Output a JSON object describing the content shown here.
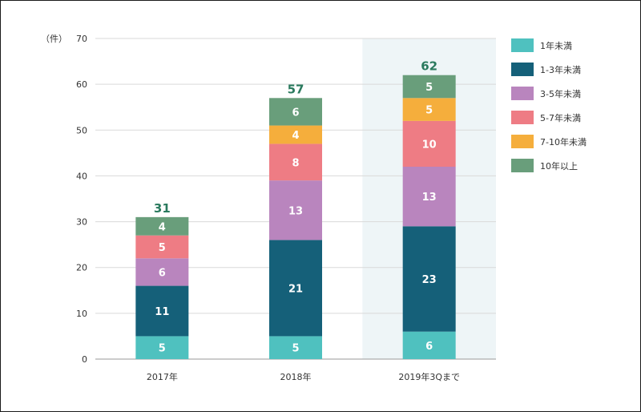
{
  "chart_data": {
    "type": "bar",
    "stacked": true,
    "unit_label": "（件）",
    "categories": [
      "2017年",
      "2018年",
      "2019年3Qまで"
    ],
    "highlighted_category": "2019年3Qまで",
    "highlight_color": "#eef5f7",
    "ylim": [
      0,
      70
    ],
    "yticks": [
      0,
      10,
      20,
      30,
      40,
      50,
      60,
      70
    ],
    "grid": true,
    "legend_position": "right",
    "series": [
      {
        "name": "1年未満",
        "color": "#4fc1bf",
        "values": [
          5,
          5,
          6
        ]
      },
      {
        "name": "1-3年未満",
        "color": "#156079",
        "values": [
          11,
          21,
          23
        ]
      },
      {
        "name": "3-5年未満",
        "color": "#b985be",
        "values": [
          6,
          13,
          13
        ]
      },
      {
        "name": "5-7年未満",
        "color": "#ee7c84",
        "values": [
          5,
          8,
          10
        ]
      },
      {
        "name": "7-10年未満",
        "color": "#f5ae3c",
        "values": [
          0,
          4,
          5
        ]
      },
      {
        "name": "10年以上",
        "color": "#699e7b",
        "values": [
          4,
          6,
          5
        ]
      }
    ],
    "totals": [
      "31",
      "57",
      "62"
    ],
    "total_color": "#2a7a5e"
  }
}
